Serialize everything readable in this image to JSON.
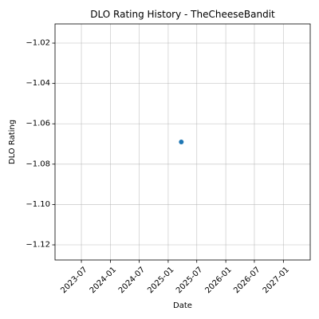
{
  "chart_data": {
    "type": "scatter",
    "title": "DLO Rating History - TheCheeseBandit",
    "xlabel": "Date",
    "ylabel": "DLO Rating",
    "x_axis_type": "date",
    "xlim": [
      "2023-01-15",
      "2027-06-20"
    ],
    "ylim": [
      -1.1275,
      -1.0105
    ],
    "x_ticks": [
      "2023-07",
      "2024-01",
      "2024-07",
      "2025-01",
      "2025-07",
      "2026-01",
      "2026-07",
      "2027-01"
    ],
    "y_ticks": [
      -1.02,
      -1.04,
      -1.06,
      -1.08,
      -1.1,
      -1.12
    ],
    "y_tick_labels": [
      "−1.02",
      "−1.04",
      "−1.06",
      "−1.08",
      "−1.10",
      "−1.12"
    ],
    "grid": true,
    "x_tick_rotation_deg": 45,
    "points": [
      {
        "x": "2025-03-25",
        "y": -1.069
      }
    ],
    "marker_color": "#1f77b4"
  }
}
